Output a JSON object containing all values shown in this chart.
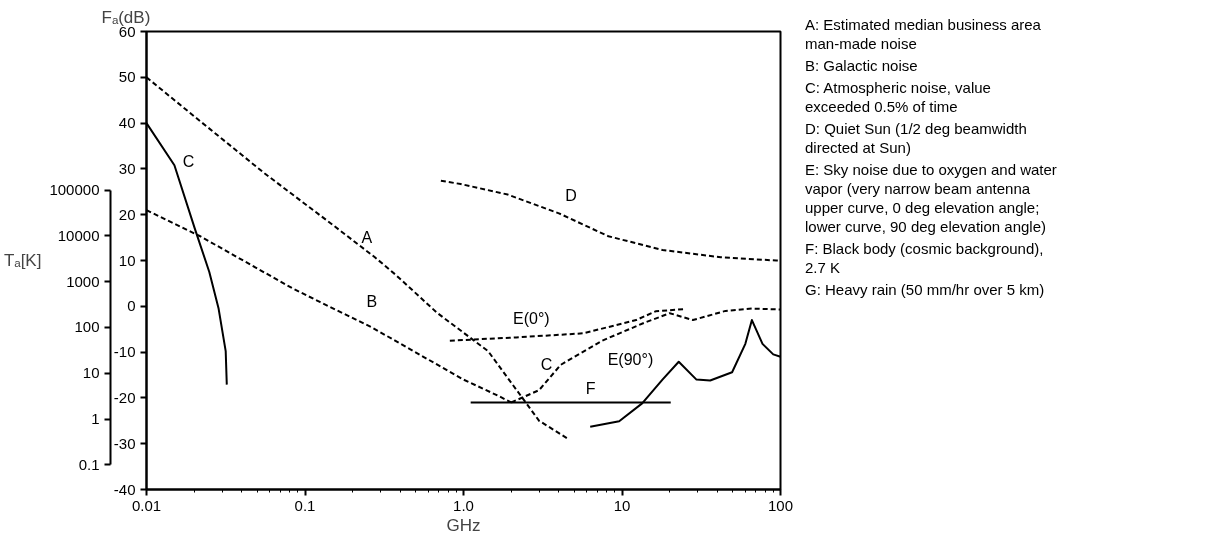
{
  "chart_data": {
    "type": "line",
    "xlabel": "GHz",
    "ylabel": "Tₐ[K]",
    "y2label": "Fₐ(dB)",
    "log": "xy",
    "xlim": [
      0.01,
      100
    ],
    "ylim": [
      0.029,
      290000000
    ],
    "y2lim": [
      -40,
      60
    ],
    "xticks": [
      0.01,
      0.1,
      {
        "value": 1,
        "label": "1.0"
      },
      10,
      100
    ],
    "yticks": [
      0.1,
      1,
      10,
      100,
      1000,
      10000,
      100000
    ],
    "y2ticks": [
      -40,
      -30,
      -20,
      -10,
      0,
      10,
      20,
      30,
      40,
      50,
      60
    ],
    "grid": false,
    "series": [
      {
        "name": "A",
        "axis": "y2",
        "color": "#000000",
        "line_style": "dashed",
        "x": [
          0.01,
          0.0208,
          0.0557,
          0.152,
          0.276,
          0.37,
          0.68,
          1.43,
          3.0,
          4.5
        ],
        "values": [
          50,
          41,
          29,
          17.6,
          10.7,
          7,
          -1.4,
          -9.8,
          -25,
          -28.8
        ]
      },
      {
        "name": "B",
        "axis": "y2",
        "color": "#000000",
        "line_style": "dashed",
        "x": [
          0.01,
          0.0218,
          0.0836,
          0.125,
          0.264,
          0.37,
          1.0,
          1.67,
          2.0
        ],
        "values": [
          21,
          15.3,
          3.9,
          0.9,
          -4.6,
          -7.5,
          -16,
          -19.6,
          -21
        ]
      },
      {
        "name": "C",
        "axis": "y2",
        "color": "#000000",
        "line_style": "solid",
        "x": [
          0.01,
          0.015,
          0.0202,
          0.0249,
          0.0285,
          0.0316,
          0.0321
        ],
        "values": [
          40,
          30.8,
          16.9,
          7.5,
          -0.5,
          -9.8,
          -17.1
        ]
      },
      {
        "name": "C",
        "axis": "y2",
        "color": "#000000",
        "line_style": "dashed",
        "x": [
          2.0,
          3.0,
          4.1,
          7.5,
          13.6,
          20,
          28,
          45,
          66,
          100
        ],
        "values": [
          -21,
          -18.3,
          -12.8,
          -7.5,
          -3.7,
          -1.5,
          -3,
          -1,
          -0.5,
          -0.7
        ]
      },
      {
        "name": "D",
        "axis": "y2",
        "color": "#000000",
        "line_style": "dashed",
        "x": [
          0.72,
          0.96,
          1.9,
          4.0,
          8.2,
          18,
          42,
          94,
          100
        ],
        "values": [
          27.4,
          26.7,
          24.4,
          20.3,
          15.3,
          12.3,
          10.7,
          10,
          10
        ]
      },
      {
        "name": "E(0°)",
        "axis": "y2",
        "color": "#000000",
        "line_style": "dashed",
        "x": [
          0.82,
          2.15,
          5.7,
          12.3,
          16.3,
          25
        ],
        "values": [
          -7.5,
          -6.8,
          -5.9,
          -3,
          -1.1,
          -0.6
        ]
      },
      {
        "name": "E(90°)",
        "axis": "y2",
        "color": "#000000",
        "line_style": "solid",
        "x": [
          6.3,
          9.6,
          13.4,
          18,
          22.8,
          29.5,
          36,
          49.5,
          60,
          66,
          77,
          90,
          100
        ],
        "values": [
          -26.3,
          -25.1,
          -21.2,
          -16,
          -12.1,
          -16,
          -16.2,
          -14.4,
          -8.2,
          -3,
          -8.2,
          -10.5,
          -11
        ]
      },
      {
        "name": "F",
        "axis": "y2",
        "color": "#000000",
        "line_style": "solid",
        "x": [
          1.11,
          20.3
        ],
        "values": [
          -21,
          -21
        ]
      }
    ],
    "annotations": [
      "A: Estimated median business area\nman-made noise",
      "B: Galactic noise",
      "C: Atmospheric noise, value\nexceeded 0.5% of time",
      "D: Quiet Sun (1/2 deg beamwidth\ndirected at Sun)",
      "E: Sky noise due to oxygen and water\nvapor (very narrow beam antenna\nupper curve, 0 deg elevation angle;\nlower curve, 90 deg elevation angle)",
      "F: Black body (cosmic background),\n2.7 K",
      "G: Heavy rain (50 mm/hr over 5 km)"
    ]
  }
}
